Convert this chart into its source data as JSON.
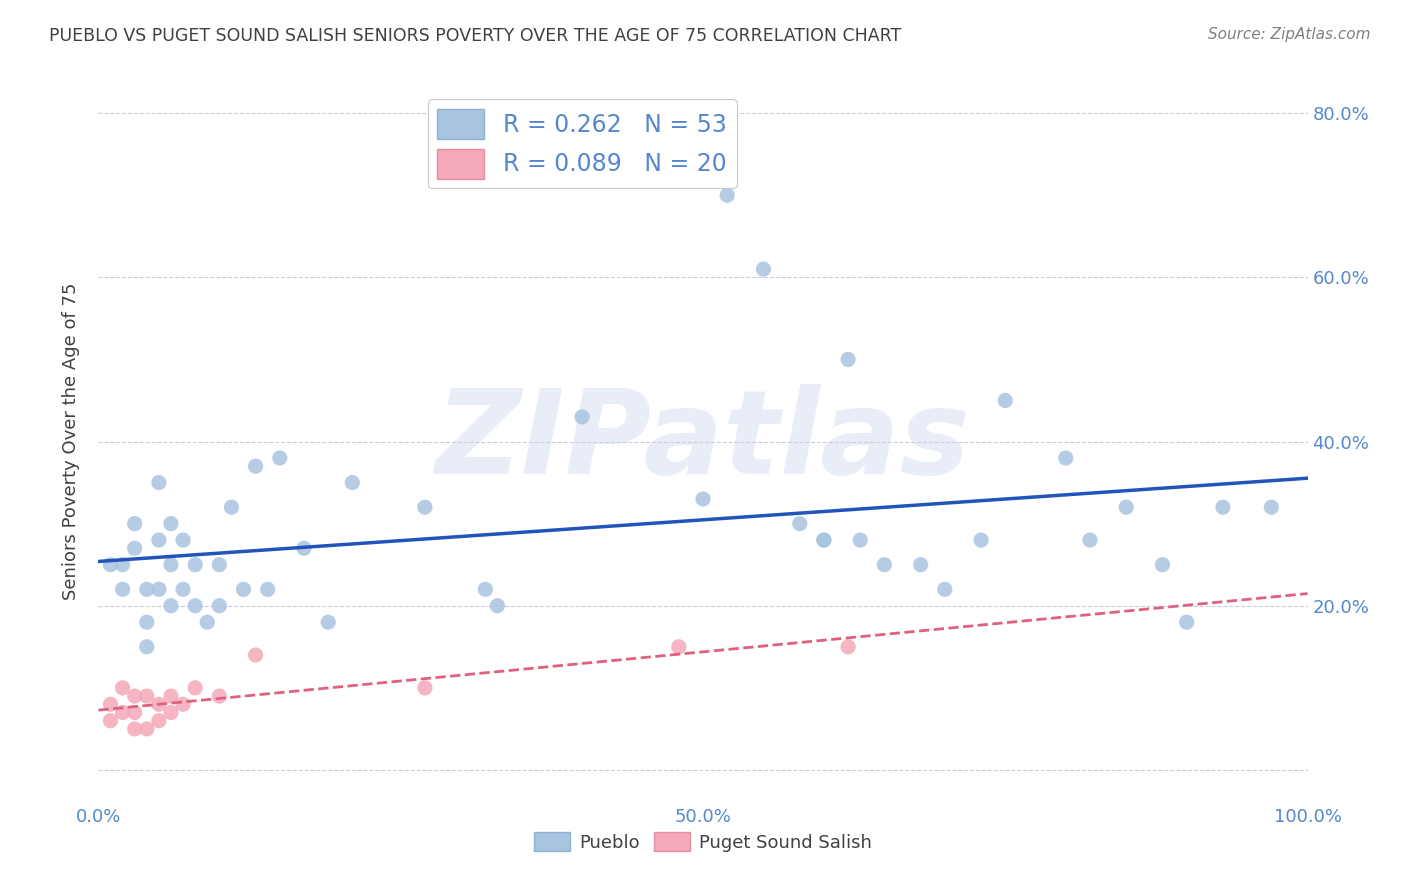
{
  "title": "PUEBLO VS PUGET SOUND SALISH SENIORS POVERTY OVER THE AGE OF 75 CORRELATION CHART",
  "source": "Source: ZipAtlas.com",
  "ylabel": "Seniors Poverty Over the Age of 75",
  "background_color": "#ffffff",
  "watermark": "ZIPatlas",
  "pueblo_color": "#a8c4e0",
  "puget_color": "#f4a8b8",
  "pueblo_line_color": "#2255bb",
  "puget_line_color": "#e06080",
  "pueblo_R": 0.262,
  "pueblo_N": 53,
  "puget_R": 0.089,
  "puget_N": 20,
  "pueblo_x": [
    0.01,
    0.02,
    0.02,
    0.03,
    0.03,
    0.04,
    0.04,
    0.04,
    0.05,
    0.05,
    0.05,
    0.06,
    0.06,
    0.06,
    0.07,
    0.07,
    0.08,
    0.08,
    0.09,
    0.1,
    0.1,
    0.11,
    0.12,
    0.13,
    0.14,
    0.15,
    0.17,
    0.19,
    0.21,
    0.27,
    0.32,
    0.33,
    0.4,
    0.5,
    0.52,
    0.55,
    0.58,
    0.6,
    0.6,
    0.62,
    0.63,
    0.65,
    0.68,
    0.7,
    0.73,
    0.75,
    0.8,
    0.82,
    0.85,
    0.88,
    0.9,
    0.93,
    0.97
  ],
  "pueblo_y": [
    0.25,
    0.25,
    0.22,
    0.3,
    0.27,
    0.22,
    0.18,
    0.15,
    0.35,
    0.28,
    0.22,
    0.3,
    0.25,
    0.2,
    0.28,
    0.22,
    0.25,
    0.2,
    0.18,
    0.25,
    0.2,
    0.32,
    0.22,
    0.37,
    0.22,
    0.38,
    0.27,
    0.18,
    0.35,
    0.32,
    0.22,
    0.2,
    0.43,
    0.33,
    0.7,
    0.61,
    0.3,
    0.28,
    0.28,
    0.5,
    0.28,
    0.25,
    0.25,
    0.22,
    0.28,
    0.45,
    0.38,
    0.28,
    0.32,
    0.25,
    0.18,
    0.32,
    0.32
  ],
  "puget_x": [
    0.01,
    0.01,
    0.02,
    0.02,
    0.03,
    0.03,
    0.03,
    0.04,
    0.04,
    0.05,
    0.05,
    0.06,
    0.06,
    0.07,
    0.08,
    0.1,
    0.13,
    0.27,
    0.48,
    0.62
  ],
  "puget_y": [
    0.08,
    0.06,
    0.1,
    0.07,
    0.09,
    0.07,
    0.05,
    0.09,
    0.05,
    0.08,
    0.06,
    0.09,
    0.07,
    0.08,
    0.1,
    0.09,
    0.14,
    0.1,
    0.15,
    0.15
  ],
  "xlim": [
    0.0,
    1.0
  ],
  "ylim": [
    -0.04,
    0.84
  ],
  "xtick_positions": [
    0.0,
    0.1,
    0.2,
    0.3,
    0.4,
    0.5,
    0.6,
    0.7,
    0.8,
    0.9,
    1.0
  ],
  "xtick_labels": [
    "0.0%",
    "",
    "",
    "",
    "",
    "50.0%",
    "",
    "",
    "",
    "",
    "100.0%"
  ],
  "ytick_positions": [
    0.0,
    0.2,
    0.4,
    0.6,
    0.8
  ],
  "ytick_labels_left": [
    "",
    "",
    "",
    "",
    ""
  ],
  "ytick_labels_right": [
    "",
    "20.0%",
    "40.0%",
    "60.0%",
    "80.0%"
  ],
  "grid_color": "#ccccdd",
  "title_color": "#404040",
  "axis_label_color": "#5588cc",
  "watermark_color": "#ccd8ee",
  "watermark_alpha": 0.45
}
